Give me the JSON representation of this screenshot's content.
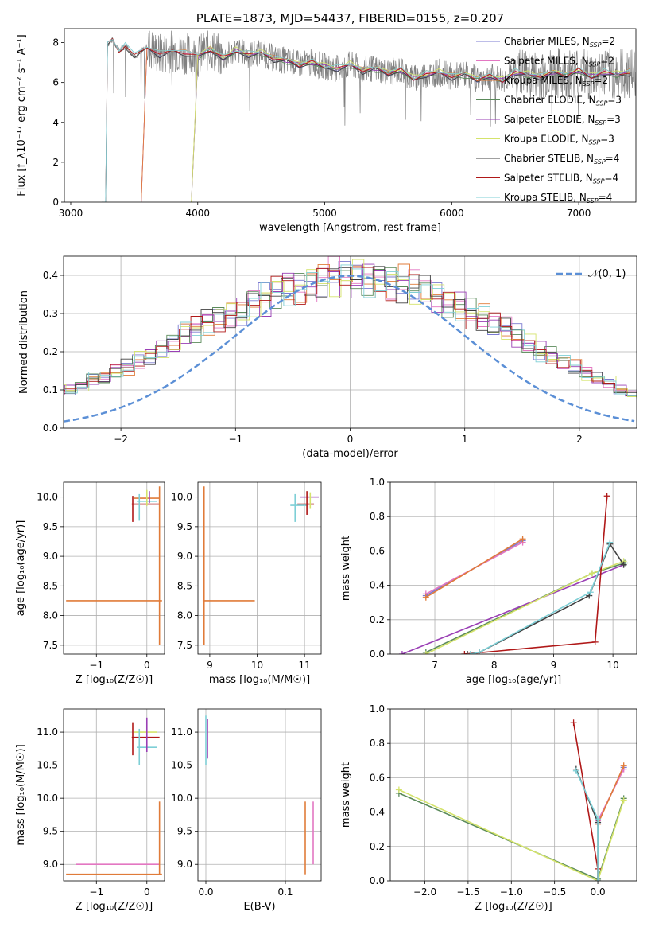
{
  "colors": {
    "chabrier_miles": "#7b7bd1",
    "salpeter_miles": "#e377c2",
    "kroupa_miles": "#e07b39",
    "chabrier_elodie": "#5a8a5a",
    "salpeter_elodie": "#9a3fb5",
    "kroupa_elodie": "#d4e36b",
    "chabrier_stelib": "#404040",
    "salpeter_stelib": "#b01818",
    "kroupa_stelib": "#7ecfd6",
    "normal_curve": "#5b8fd6"
  },
  "chart_data": [
    {
      "id": "spectrum",
      "type": "line",
      "title": "PLATE=1873, MJD=54437, FIBERID=0155, z=0.207",
      "xlabel": "wavelength [Angstrom, rest frame]",
      "ylabel": "Flux [f_λ10⁻¹⁷ erg cm⁻² s⁻¹ A⁻¹]",
      "xlim": [
        2950,
        7450
      ],
      "ylim": [
        0,
        8.7
      ],
      "xticks": [
        "3000",
        "4000",
        "5000",
        "6000",
        "7000"
      ],
      "yticks": [
        "0",
        "2",
        "4",
        "6",
        "8"
      ],
      "grid": false,
      "legend_position": "top-right",
      "legend": [
        "Chabrier MILES, N_SSP=2",
        "Salpeter MILES, N_SSP=2",
        "Kroupa MILES, N_SSP=2",
        "Chabrier ELODIE, N_SSP=3",
        "Salpeter ELODIE, N_SSP=3",
        "Kroupa ELODIE, N_SSP=3",
        "Chabrier STELIB, N_SSP=4",
        "Salpeter STELIB, N_SSP=4",
        "Kroupa STELIB, N_SSP=4"
      ],
      "data_series_color": "#808080",
      "model_start_wavelengths": {
        "stelib": 3275,
        "miles": 3555,
        "elodie": 3950
      },
      "model_end_wavelength": 7400,
      "models_smooth": [
        [
          3275,
          0
        ],
        [
          3290,
          7.9
        ],
        [
          3330,
          8.15
        ],
        [
          3380,
          7.6
        ],
        [
          3430,
          7.9
        ],
        [
          3500,
          7.3
        ],
        [
          3600,
          7.8
        ],
        [
          3700,
          7.4
        ],
        [
          3800,
          7.6
        ],
        [
          3900,
          7.5
        ],
        [
          4000,
          7.3
        ],
        [
          4100,
          7.7
        ],
        [
          4200,
          7.2
        ],
        [
          4300,
          7.6
        ],
        [
          4400,
          7.4
        ],
        [
          4500,
          7.5
        ],
        [
          4600,
          7.2
        ],
        [
          4700,
          7.1
        ],
        [
          4800,
          6.9
        ],
        [
          4900,
          7.0
        ],
        [
          5000,
          6.8
        ],
        [
          5100,
          6.7
        ],
        [
          5200,
          6.9
        ],
        [
          5300,
          6.6
        ],
        [
          5400,
          6.7
        ],
        [
          5500,
          6.5
        ],
        [
          5600,
          6.6
        ],
        [
          5700,
          6.2
        ],
        [
          5800,
          6.4
        ],
        [
          5900,
          6.5
        ],
        [
          6000,
          6.3
        ],
        [
          6100,
          6.4
        ],
        [
          6200,
          6.2
        ],
        [
          6300,
          6.3
        ],
        [
          6400,
          6.1
        ],
        [
          6500,
          6.5
        ],
        [
          6600,
          6.4
        ],
        [
          6700,
          6.3
        ],
        [
          6800,
          6.5
        ],
        [
          6900,
          6.4
        ],
        [
          7000,
          6.6
        ],
        [
          7100,
          6.3
        ],
        [
          7200,
          6.5
        ],
        [
          7300,
          6.4
        ],
        [
          7400,
          6.5
        ]
      ]
    },
    {
      "id": "residuals",
      "type": "histogram",
      "xlabel": "(data-model)/error",
      "ylabel": "Normed distribution",
      "xlim": [
        -2.5,
        2.5
      ],
      "ylim": [
        0,
        0.45
      ],
      "xticks": [
        "−2",
        "−1",
        "0",
        "1",
        "2"
      ],
      "yticks": [
        "0.0",
        "0.1",
        "0.2",
        "0.3",
        "0.4"
      ],
      "grid": true,
      "legend_position": "top-right",
      "legend": [
        "𝒩(0, 1)"
      ],
      "bin_width": 0.1,
      "histogram_values": [
        0.03,
        0.03,
        0.03,
        0.04,
        0.05,
        0.06,
        0.06,
        0.07,
        0.09,
        0.1,
        0.1,
        0.11,
        0.13,
        0.13,
        0.15,
        0.16,
        0.18,
        0.19,
        0.21,
        0.22,
        0.25,
        0.26,
        0.28,
        0.29,
        0.3,
        0.31,
        0.33,
        0.34,
        0.36,
        0.37,
        0.37,
        0.38,
        0.39,
        0.4,
        0.39,
        0.4,
        0.39,
        0.39,
        0.38,
        0.38,
        0.37,
        0.36,
        0.34,
        0.33,
        0.32,
        0.3,
        0.29,
        0.27,
        0.26,
        0.24,
        0.22,
        0.2,
        0.19,
        0.17,
        0.16,
        0.14,
        0.13,
        0.12,
        0.1,
        0.09,
        0.08,
        0.07,
        0.06,
        0.06,
        0.05,
        0.04,
        0.04,
        0.03,
        0.03,
        0.03
      ]
    },
    {
      "id": "age_vs_Z",
      "type": "scatter",
      "xlabel": "Z [log₁₀(Z/Z☉)]",
      "ylabel": "age  [log₁₀(age/yr)]",
      "xlim": [
        -1.65,
        0.35
      ],
      "ylim": [
        7.35,
        10.25
      ],
      "xticks": [
        "−1",
        "0"
      ],
      "yticks": [
        "7.5",
        "8.0",
        "8.5",
        "9.0",
        "9.5",
        "10.0"
      ],
      "grid": true,
      "hlines": [
        {
          "y": 8.25,
          "x0": -1.6,
          "x1": 0.3,
          "series": "kroupa_miles"
        },
        {
          "y": 9.88,
          "x0": -0.3,
          "x1": 0.25,
          "series": "salpeter_stelib"
        },
        {
          "y": 9.98,
          "x0": -0.25,
          "x1": 0.25,
          "series": "kroupa_miles"
        },
        {
          "y": 9.93,
          "x0": -0.2,
          "x1": 0.2,
          "series": "kroupa_stelib"
        }
      ],
      "vlines": [
        {
          "x": 0.25,
          "y0": 7.5,
          "y1": 10.18,
          "series": "kroupa_miles"
        },
        {
          "x": -0.28,
          "y0": 9.58,
          "y1": 10.02,
          "series": "salpeter_stelib"
        },
        {
          "x": -0.15,
          "y0": 9.6,
          "y1": 10.05,
          "series": "kroupa_stelib"
        },
        {
          "x": 0.0,
          "y0": 9.85,
          "y1": 10.12,
          "series": "kroupa_elodie"
        },
        {
          "x": 0.05,
          "y0": 9.9,
          "y1": 10.1,
          "series": "salpeter_elodie"
        }
      ]
    },
    {
      "id": "age_vs_mass",
      "type": "scatter",
      "xlabel": "mass [log₁₀(M/M☉)]",
      "ylabel": "",
      "xlim": [
        8.75,
        11.35
      ],
      "ylim": [
        7.35,
        10.25
      ],
      "xticks": [
        "9",
        "10",
        "11"
      ],
      "yticks": [
        "7.5",
        "8.0",
        "8.5",
        "9.0",
        "9.5",
        "10.0"
      ],
      "grid": true,
      "hlines": [
        {
          "y": 8.25,
          "x0": 8.85,
          "x1": 9.95,
          "series": "kroupa_miles"
        },
        {
          "y": 9.88,
          "x0": 10.85,
          "x1": 11.2,
          "series": "salpeter_stelib"
        },
        {
          "y": 9.86,
          "x0": 10.7,
          "x1": 11.05,
          "series": "kroupa_stelib"
        },
        {
          "y": 10.0,
          "x0": 10.9,
          "x1": 11.3,
          "series": "salpeter_elodie"
        }
      ],
      "vlines": [
        {
          "x": 8.88,
          "y0": 7.5,
          "y1": 10.18,
          "series": "kroupa_miles"
        },
        {
          "x": 10.8,
          "y0": 9.58,
          "y1": 10.05,
          "series": "kroupa_stelib"
        },
        {
          "x": 11.05,
          "y0": 9.7,
          "y1": 10.1,
          "series": "salpeter_stelib"
        },
        {
          "x": 11.12,
          "y0": 9.8,
          "y1": 10.08,
          "series": "kroupa_elodie"
        }
      ]
    },
    {
      "id": "weight_vs_age",
      "type": "line",
      "xlabel": "age  [log₁₀(age/yr)]",
      "ylabel": "mass weight",
      "xlim": [
        6.25,
        10.4
      ],
      "ylim": [
        0,
        1.0
      ],
      "xticks": [
        "7",
        "8",
        "9",
        "10"
      ],
      "yticks": [
        "0.0",
        "0.2",
        "0.4",
        "0.6",
        "0.8",
        "1.0"
      ],
      "grid": true,
      "series": [
        {
          "key": "chabrier_miles",
          "x": [
            6.85,
            8.48
          ],
          "y": [
            0.34,
            0.66
          ]
        },
        {
          "key": "salpeter_miles",
          "x": [
            6.85,
            8.48
          ],
          "y": [
            0.35,
            0.65
          ]
        },
        {
          "key": "kroupa_miles",
          "x": [
            6.85,
            8.48
          ],
          "y": [
            0.33,
            0.67
          ]
        },
        {
          "key": "chabrier_elodie",
          "x": [
            6.85,
            9.65,
            10.2
          ],
          "y": [
            0.01,
            0.47,
            0.53
          ]
        },
        {
          "key": "salpeter_elodie",
          "x": [
            6.45,
            10.18
          ],
          "y": [
            0.0,
            0.52
          ]
        },
        {
          "key": "kroupa_elodie",
          "x": [
            6.85,
            9.65,
            10.18
          ],
          "y": [
            0.0,
            0.47,
            0.54
          ]
        },
        {
          "key": "chabrier_stelib",
          "x": [
            7.55,
            7.75,
            9.6,
            9.95,
            10.18
          ],
          "y": [
            0.0,
            0.01,
            0.34,
            0.64,
            0.52
          ]
        },
        {
          "key": "salpeter_stelib",
          "x": [
            7.5,
            9.7,
            9.9
          ],
          "y": [
            0.0,
            0.07,
            0.92
          ]
        },
        {
          "key": "kroupa_stelib",
          "x": [
            7.6,
            7.75,
            9.62,
            9.95
          ],
          "y": [
            0.0,
            0.01,
            0.36,
            0.65
          ]
        }
      ]
    },
    {
      "id": "mass_vs_Z",
      "type": "scatter",
      "xlabel": "Z [log₁₀(Z/Z☉)]",
      "ylabel": "mass [log₁₀(M/M☉)]",
      "xlim": [
        -1.65,
        0.35
      ],
      "ylim": [
        8.75,
        11.35
      ],
      "xticks": [
        "−1",
        "0"
      ],
      "yticks": [
        "9.0",
        "9.5",
        "10.0",
        "10.5",
        "11.0"
      ],
      "grid": true,
      "hlines": [
        {
          "y": 8.85,
          "x0": -1.6,
          "x1": 0.3,
          "series": "kroupa_miles"
        },
        {
          "y": 9.0,
          "x0": -1.4,
          "x1": 0.25,
          "series": "salpeter_miles"
        },
        {
          "y": 10.92,
          "x0": -0.3,
          "x1": 0.25,
          "series": "salpeter_stelib"
        },
        {
          "y": 10.77,
          "x0": -0.2,
          "x1": 0.2,
          "series": "kroupa_stelib"
        },
        {
          "y": 11.0,
          "x0": -0.25,
          "x1": 0.2,
          "series": "kroupa_elodie"
        }
      ],
      "vlines": [
        {
          "x": 0.25,
          "y0": 8.85,
          "y1": 9.95,
          "series": "kroupa_miles"
        },
        {
          "x": -0.28,
          "y0": 10.65,
          "y1": 11.15,
          "series": "salpeter_stelib"
        },
        {
          "x": -0.15,
          "y0": 10.5,
          "y1": 11.05,
          "series": "kroupa_stelib"
        },
        {
          "x": 0.0,
          "y0": 10.7,
          "y1": 11.22,
          "series": "salpeter_elodie"
        }
      ]
    },
    {
      "id": "mass_vs_ebv",
      "type": "scatter",
      "xlabel": "E(B-V)",
      "ylabel": "",
      "xlim": [
        -0.01,
        0.145
      ],
      "ylim": [
        8.75,
        11.35
      ],
      "xticks": [
        "0.0",
        "0.1"
      ],
      "yticks": [
        "9.0",
        "9.5",
        "10.0",
        "10.5",
        "11.0"
      ],
      "grid": true,
      "vlines": [
        {
          "x": 0.0,
          "y0": 10.5,
          "y1": 11.25,
          "series": "kroupa_stelib"
        },
        {
          "x": 0.002,
          "y0": 10.6,
          "y1": 11.2,
          "series": "salpeter_elodie"
        },
        {
          "x": 0.125,
          "y0": 8.85,
          "y1": 9.95,
          "series": "kroupa_miles"
        },
        {
          "x": 0.135,
          "y0": 9.0,
          "y1": 9.95,
          "series": "salpeter_miles"
        }
      ],
      "hlines": []
    },
    {
      "id": "weight_vs_Z",
      "type": "line",
      "xlabel": "Z [log₁₀(Z/Z☉)]",
      "ylabel": "mass weight",
      "xlim": [
        -2.4,
        0.45
      ],
      "ylim": [
        0,
        1.0
      ],
      "xticks": [
        "−2.0",
        "−1.5",
        "−1.0",
        "−0.5",
        "0.0"
      ],
      "yticks": [
        "0.0",
        "0.2",
        "0.4",
        "0.6",
        "0.8",
        "1.0"
      ],
      "grid": true,
      "series": [
        {
          "key": "chabrier_miles",
          "x": [
            0.0,
            0.3
          ],
          "y": [
            0.34,
            0.66
          ]
        },
        {
          "key": "salpeter_miles",
          "x": [
            0.0,
            0.3
          ],
          "y": [
            0.35,
            0.65
          ]
        },
        {
          "key": "kroupa_miles",
          "x": [
            0.0,
            0.3
          ],
          "y": [
            0.33,
            0.67
          ]
        },
        {
          "key": "chabrier_elodie",
          "x": [
            -2.3,
            0.0,
            0.3
          ],
          "y": [
            0.51,
            0.01,
            0.48
          ]
        },
        {
          "key": "kroupa_elodie",
          "x": [
            -2.3,
            0.0,
            0.3
          ],
          "y": [
            0.53,
            0.0,
            0.47
          ]
        },
        {
          "key": "chabrier_stelib",
          "x": [
            -0.25,
            0.0,
            0.0
          ],
          "y": [
            0.65,
            0.34,
            0.0
          ]
        },
        {
          "key": "salpeter_stelib",
          "x": [
            -0.28,
            0.0,
            0.0
          ],
          "y": [
            0.92,
            0.07,
            0.0
          ]
        },
        {
          "key": "kroupa_stelib",
          "x": [
            -0.25,
            0.0,
            0.0
          ],
          "y": [
            0.64,
            0.36,
            0.0
          ]
        }
      ]
    }
  ]
}
